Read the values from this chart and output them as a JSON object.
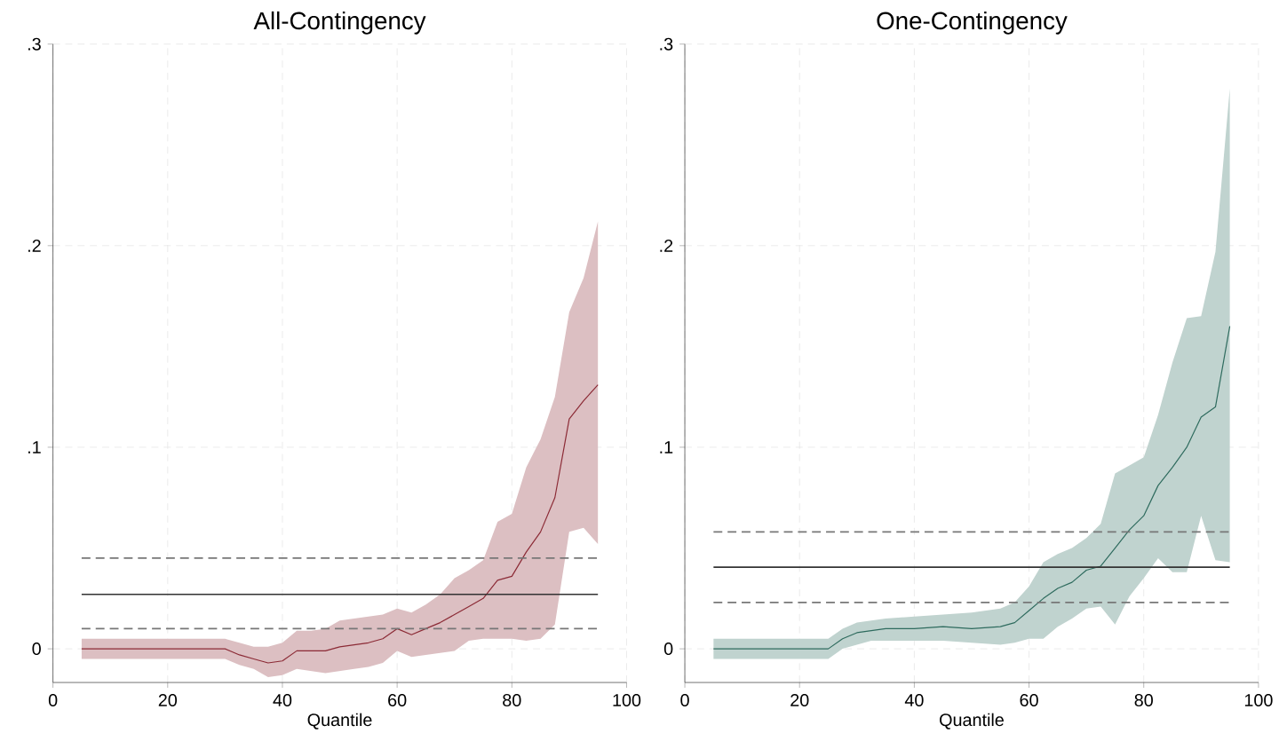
{
  "chart_data": [
    {
      "type": "line",
      "title": "All-Contingency",
      "xlabel": "Quantile",
      "xlim": [
        0,
        100
      ],
      "ylim": [
        -0.0167,
        0.3
      ],
      "xticks": [
        0,
        20,
        40,
        60,
        80,
        100
      ],
      "yticks": [
        0,
        {
          "value": 0.1,
          "label": ".1"
        },
        {
          "value": 0.2,
          "label": ".2"
        },
        {
          "value": 0.3,
          "label": ".3"
        }
      ],
      "grid": true,
      "series": [
        {
          "color": "#8b2a35",
          "x": [
            5,
            10,
            15,
            20,
            25,
            30,
            32.5,
            35,
            37.5,
            40,
            42.5,
            45,
            47.5,
            50,
            52.5,
            55,
            57.5,
            60,
            62.5,
            65,
            67.5,
            70,
            72.5,
            75,
            77.5,
            80,
            82.5,
            85,
            87.5,
            90,
            92.5,
            95
          ],
          "values": [
            0,
            0,
            0,
            0,
            0,
            0,
            -0.003,
            -0.005,
            -0.007,
            -0.006,
            -0.001,
            -0.001,
            -0.001,
            0.001,
            0.002,
            0.003,
            0.005,
            0.01,
            0.007,
            0.01,
            0.013,
            0.017,
            0.021,
            0.025,
            0.034,
            0.036,
            0.048,
            0.058,
            0.075,
            0.114,
            0.123,
            0.131
          ],
          "upper": [
            0.005,
            0.005,
            0.005,
            0.005,
            0.005,
            0.005,
            0.003,
            0.001,
            0.001,
            0.003,
            0.009,
            0.009,
            0.01,
            0.014,
            0.015,
            0.016,
            0.017,
            0.02,
            0.018,
            0.022,
            0.027,
            0.035,
            0.039,
            0.044,
            0.063,
            0.067,
            0.09,
            0.104,
            0.125,
            0.167,
            0.184,
            0.212
          ],
          "lower": [
            -0.005,
            -0.005,
            -0.005,
            -0.005,
            -0.005,
            -0.005,
            -0.008,
            -0.01,
            -0.014,
            -0.013,
            -0.01,
            -0.011,
            -0.012,
            -0.011,
            -0.01,
            -0.009,
            -0.007,
            -0.001,
            -0.004,
            -0.003,
            -0.002,
            -0.001,
            0.004,
            0.005,
            0.005,
            0.005,
            0.004,
            0.005,
            0.012,
            0.058,
            0.06,
            0.052
          ]
        }
      ],
      "ref_lines": [
        {
          "axis": "y",
          "value": 0.027,
          "color": "#333333",
          "line_style": "solid"
        },
        {
          "axis": "y",
          "value": 0.045,
          "color": "#777777",
          "line_style": "dashed"
        },
        {
          "axis": "y",
          "value": 0.01,
          "color": "#777777",
          "line_style": "dashed"
        }
      ]
    },
    {
      "type": "line",
      "title": "One-Contingency",
      "xlabel": "Quantile",
      "xlim": [
        0,
        100
      ],
      "ylim": [
        -0.0167,
        0.3
      ],
      "xticks": [
        0,
        20,
        40,
        60,
        80,
        100
      ],
      "yticks": [
        0,
        {
          "value": 0.1,
          "label": ".1"
        },
        {
          "value": 0.2,
          "label": ".2"
        },
        {
          "value": 0.3,
          "label": ".3"
        }
      ],
      "grid": true,
      "series": [
        {
          "color": "#2e6b5e",
          "x": [
            5,
            10,
            15,
            20,
            25,
            27.5,
            30,
            32.5,
            35,
            40,
            45,
            50,
            55,
            57.5,
            60,
            62.5,
            65,
            67.5,
            70,
            72.5,
            75,
            77.5,
            80,
            82.5,
            85,
            87.5,
            90,
            92.5,
            95
          ],
          "values": [
            0,
            0,
            0,
            0,
            0,
            0.005,
            0.008,
            0.009,
            0.01,
            0.01,
            0.011,
            0.01,
            0.011,
            0.013,
            0.019,
            0.025,
            0.03,
            0.033,
            0.039,
            0.041,
            0.05,
            0.059,
            0.066,
            0.081,
            0.09,
            0.1,
            0.115,
            0.12,
            0.16
          ],
          "upper": [
            0.005,
            0.005,
            0.005,
            0.005,
            0.005,
            0.01,
            0.013,
            0.014,
            0.015,
            0.016,
            0.017,
            0.018,
            0.02,
            0.023,
            0.031,
            0.043,
            0.047,
            0.05,
            0.055,
            0.062,
            0.087,
            0.091,
            0.095,
            0.116,
            0.142,
            0.164,
            0.165,
            0.197,
            0.278
          ],
          "lower": [
            -0.005,
            -0.005,
            -0.005,
            -0.005,
            -0.005,
            0.0,
            0.002,
            0.004,
            0.004,
            0.004,
            0.004,
            0.003,
            0.002,
            0.003,
            0.005,
            0.005,
            0.011,
            0.015,
            0.02,
            0.021,
            0.012,
            0.026,
            0.035,
            0.045,
            0.038,
            0.038,
            0.066,
            0.044,
            0.043
          ]
        }
      ],
      "ref_lines": [
        {
          "axis": "y",
          "value": 0.0405,
          "color": "#333333",
          "line_style": "solid"
        },
        {
          "axis": "y",
          "value": 0.058,
          "color": "#777777",
          "line_style": "dashed"
        },
        {
          "axis": "y",
          "value": 0.023,
          "color": "#777777",
          "line_style": "dashed"
        }
      ]
    }
  ]
}
